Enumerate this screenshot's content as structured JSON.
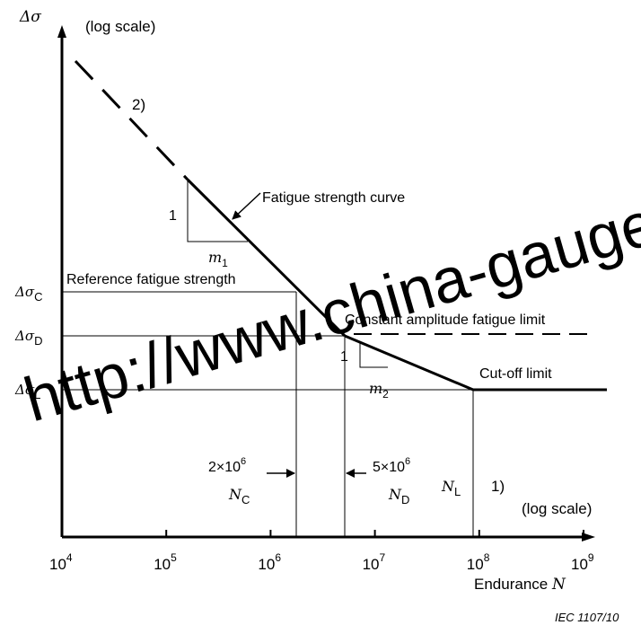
{
  "chart_data": {
    "type": "line",
    "title": "",
    "xlabel": "Endurance N",
    "x_scale_note": "(log scale)",
    "ylabel": "Δσ",
    "y_scale_note": "(log scale)",
    "x_scale": "log",
    "y_scale": "log",
    "xlim": [
      10000,
      1000000000
    ],
    "grid": false,
    "x_ticks": [
      {
        "value": 10000,
        "base": "10",
        "exp": "4"
      },
      {
        "value": 100000,
        "base": "10",
        "exp": "5"
      },
      {
        "value": 1000000,
        "base": "10",
        "exp": "6"
      },
      {
        "value": 10000000,
        "base": "10",
        "exp": "7"
      },
      {
        "value": 100000000,
        "base": "10",
        "exp": "8"
      },
      {
        "value": 1000000000,
        "base": "10",
        "exp": "9"
      }
    ],
    "y_levels": [
      {
        "name": "C",
        "sym": "Δσ",
        "sub": "C"
      },
      {
        "name": "D",
        "sym": "Δσ",
        "sub": "D"
      },
      {
        "name": "L",
        "sym": "Δσ",
        "sub": "L"
      }
    ],
    "series": [
      {
        "segment": "extension",
        "style": "dashed",
        "x": [
          10000,
          300000
        ]
      },
      {
        "segment": "fatigue strength curve",
        "style": "solid",
        "x": [
          300000,
          5000000
        ],
        "slope": "m1"
      },
      {
        "segment": "second slope",
        "style": "solid",
        "x": [
          5000000,
          100000000
        ],
        "slope": "m2"
      },
      {
        "segment": "cut-off",
        "style": "solid",
        "x": [
          100000000,
          1000000000
        ]
      },
      {
        "segment": "constant amplitude limit continuation",
        "style": "dashed",
        "x": [
          5000000,
          1000000000
        ]
      }
    ],
    "characteristic_points": {
      "NC": {
        "value": 2000000,
        "label_base": "2×10",
        "label_exp": "6",
        "sym": "N",
        "sub": "C"
      },
      "ND": {
        "value": 5000000,
        "label_base": "5×10",
        "label_exp": "6",
        "sym": "N",
        "sub": "D"
      },
      "NL": {
        "value": 100000000,
        "sym": "N",
        "sub": "L"
      }
    },
    "annotations": {
      "fatigue_curve": "Fatigue strength curve",
      "reference": "Reference fatigue strength",
      "constant_amp": "Constant amplitude fatigue limit",
      "cutoff": "Cut-off limit",
      "note1": "1)",
      "note2": "2)",
      "slope_rise": "1",
      "slope_m": "m",
      "slope_sub1": "1",
      "slope_sub2": "2",
      "endurance_text": "Endurance ",
      "endurance_var": "N"
    }
  },
  "figure_ref": "IEC   1107/10",
  "watermark": "http://www.china-gauge"
}
